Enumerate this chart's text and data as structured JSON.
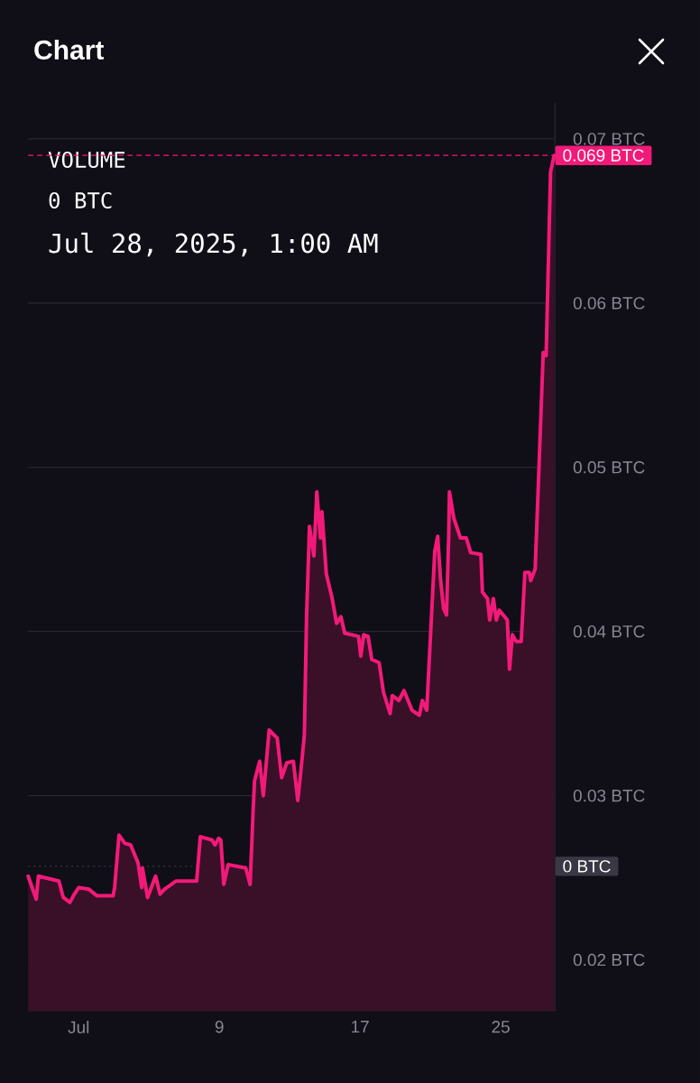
{
  "chart_data": {
    "type": "area",
    "title": "Chart",
    "annotations": [
      "VOLUME",
      "0 BTC",
      "Jul 28, 2025, 1:00 AM"
    ],
    "x": [
      "2025-06-28T03:00",
      "2025-06-28T14:00",
      "2025-06-28T17:00",
      "2025-06-29T21:00",
      "2025-06-30T03:00",
      "2025-06-30T12:00",
      "2025-06-30T18:00",
      "2025-07-01T00:00",
      "2025-07-01T14:00",
      "2025-07-02T01:00",
      "2025-07-02T23:00",
      "2025-07-03T01:00",
      "2025-07-03T07:00",
      "2025-07-03T15:00",
      "2025-07-03T23:00",
      "2025-07-04T09:00",
      "2025-07-04T14:00",
      "2025-07-04T15:00",
      "2025-07-04T22:00",
      "2025-07-05T09:00",
      "2025-07-05T15:00",
      "2025-07-05T21:00",
      "2025-07-06T13:00",
      "2025-07-07T17:00",
      "2025-07-07T22:00",
      "2025-07-08T14:00",
      "2025-07-08T18:00",
      "2025-07-08T23:00",
      "2025-07-09T02:00",
      "2025-07-09T06:00",
      "2025-07-09T12:00",
      "2025-07-10T12:00",
      "2025-07-10T18:00",
      "2025-07-10T22:00",
      "2025-07-11T00:00",
      "2025-07-11T07:00",
      "2025-07-11T12:00",
      "2025-07-11T20:00",
      "2025-07-12T07:00",
      "2025-07-12T13:00",
      "2025-07-12T20:00",
      "2025-07-13T05:00",
      "2025-07-13T11:00",
      "2025-07-13T15:00",
      "2025-07-13T20:00",
      "2025-07-13T23:00",
      "2025-07-14T03:00",
      "2025-07-14T09:00",
      "2025-07-14T13:00",
      "2025-07-14T18:00",
      "2025-07-14T20:00",
      "2025-07-15T02:00",
      "2025-07-15T10:00",
      "2025-07-15T16:00",
      "2025-07-15T22:00",
      "2025-07-16T03:00",
      "2025-07-16T22:00",
      "2025-07-17T01:00",
      "2025-07-17T05:00",
      "2025-07-17T11:00",
      "2025-07-17T16:00",
      "2025-07-18T02:00",
      "2025-07-18T08:00",
      "2025-07-18T17:00",
      "2025-07-18T20:00",
      "2025-07-19T05:00",
      "2025-07-19T12:00",
      "2025-07-19T23:00",
      "2025-07-20T09:00",
      "2025-07-20T13:00",
      "2025-07-20T19:00",
      "2025-07-21T00:00",
      "2025-07-21T06:00",
      "2025-07-21T10:00",
      "2025-07-21T14:00",
      "2025-07-21T18:00",
      "2025-07-21T22:00",
      "2025-07-22T01:00",
      "2025-07-22T02:00",
      "2025-07-22T08:00",
      "2025-07-22T17:00",
      "2025-07-23T01:00",
      "2025-07-23T07:00",
      "2025-07-23T21:00",
      "2025-07-23T23:00",
      "2025-07-24T06:00",
      "2025-07-24T09:00",
      "2025-07-24T14:00",
      "2025-07-24T18:00",
      "2025-07-24T22:00",
      "2025-07-25T09:00",
      "2025-07-25T12:00",
      "2025-07-25T16:00",
      "2025-07-25T21:00",
      "2025-07-26T04:00",
      "2025-07-26T09:00",
      "2025-07-26T15:00",
      "2025-07-26T17:00",
      "2025-07-26T23:00",
      "2025-07-27T04:00",
      "2025-07-27T10:00",
      "2025-07-27T14:00",
      "2025-07-27T20:00",
      "2025-07-28T01:00"
    ],
    "series": [
      {
        "color": "#f21a78",
        "values": [
          0.0251,
          0.0237,
          0.0251,
          0.0248,
          0.0238,
          0.0235,
          0.024,
          0.0244,
          0.0243,
          0.0239,
          0.0239,
          0.0244,
          0.0276,
          0.0271,
          0.027,
          0.0259,
          0.0244,
          0.0256,
          0.0238,
          0.0251,
          0.024,
          0.0243,
          0.0248,
          0.0248,
          0.0275,
          0.0273,
          0.027,
          0.0274,
          0.0273,
          0.0246,
          0.0258,
          0.0256,
          0.0246,
          0.029,
          0.0309,
          0.0321,
          0.03,
          0.034,
          0.0335,
          0.0311,
          0.032,
          0.0321,
          0.0297,
          0.0314,
          0.0337,
          0.0409,
          0.0464,
          0.0446,
          0.0485,
          0.0457,
          0.0473,
          0.0435,
          0.042,
          0.0405,
          0.0409,
          0.0399,
          0.0397,
          0.0385,
          0.0398,
          0.0397,
          0.0383,
          0.0381,
          0.0363,
          0.035,
          0.0361,
          0.0358,
          0.0364,
          0.0352,
          0.0349,
          0.0358,
          0.0352,
          0.0396,
          0.0449,
          0.0458,
          0.0431,
          0.0414,
          0.041,
          0.0458,
          0.0485,
          0.0469,
          0.0457,
          0.0457,
          0.0448,
          0.0447,
          0.0424,
          0.042,
          0.0407,
          0.042,
          0.0407,
          0.0413,
          0.0407,
          0.0377,
          0.0398,
          0.0394,
          0.0394,
          0.0436,
          0.0436,
          0.0431,
          0.0438,
          0.0497,
          0.057,
          0.0568,
          0.068,
          0.069
        ]
      }
    ],
    "xlim": [
      "2025-06-28T03:00",
      "2025-07-28T02:00"
    ],
    "ylim": [
      0.0169,
      0.0722
    ],
    "xticks": [
      {
        "value": "2025-07-01",
        "label": "Jul"
      },
      {
        "value": "2025-07-09",
        "label": "9"
      },
      {
        "value": "2025-07-17",
        "label": "17"
      },
      {
        "value": "2025-07-25",
        "label": "25"
      }
    ],
    "yticks": [
      {
        "value": 0.02,
        "label": "0.02 BTC"
      },
      {
        "value": 0.03,
        "label": "0.03 BTC"
      },
      {
        "value": 0.04,
        "label": "0.04 BTC"
      },
      {
        "value": 0.05,
        "label": "0.05 BTC"
      },
      {
        "value": 0.06,
        "label": "0.06 BTC"
      },
      {
        "value": 0.07,
        "label": "0.07 BTC"
      }
    ],
    "grid": "y",
    "ref_lines": [
      {
        "axis": "y",
        "value": 0.069,
        "label": "0.069 BTC",
        "color": "#f21a78",
        "line_style": "dashed"
      },
      {
        "axis": "y",
        "value": 0.0257,
        "label": "0 BTC",
        "color": "#3a3844",
        "line_style": "dotted"
      }
    ]
  }
}
